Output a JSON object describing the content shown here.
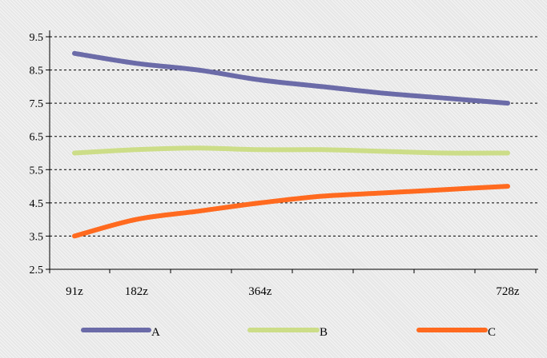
{
  "chart_data": {
    "type": "line",
    "title": "",
    "xlabel": "",
    "ylabel": "",
    "x": [
      91,
      182,
      364,
      728
    ],
    "x_tick_labels": [
      "91z",
      "182z",
      "364z",
      "728z"
    ],
    "ylim": [
      2.5,
      9.5
    ],
    "y_ticks": [
      "2.5",
      "3.5",
      "4.5",
      "5.5",
      "6.5",
      "7.5",
      "8.5",
      "9.5"
    ],
    "grid": "horizontal dashed",
    "legend_position": "bottom",
    "series": [
      {
        "name": "A",
        "color": "#6b6ba8",
        "points": [
          [
            91,
            9.0
          ],
          [
            182,
            8.7
          ],
          [
            273,
            8.5
          ],
          [
            364,
            8.2
          ],
          [
            455,
            8.0
          ],
          [
            546,
            7.8
          ],
          [
            637,
            7.65
          ],
          [
            728,
            7.5
          ]
        ]
      },
      {
        "name": "B",
        "color": "#ccdd88",
        "points": [
          [
            91,
            6.0
          ],
          [
            182,
            6.1
          ],
          [
            273,
            6.15
          ],
          [
            364,
            6.1
          ],
          [
            455,
            6.1
          ],
          [
            546,
            6.05
          ],
          [
            637,
            6.0
          ],
          [
            728,
            6.0
          ]
        ]
      },
      {
        "name": "C",
        "color": "#ff6a1f",
        "points": [
          [
            91,
            3.5
          ],
          [
            182,
            4.0
          ],
          [
            273,
            4.25
          ],
          [
            364,
            4.5
          ],
          [
            455,
            4.7
          ],
          [
            546,
            4.8
          ],
          [
            637,
            4.9
          ],
          [
            728,
            5.0
          ]
        ]
      }
    ]
  }
}
